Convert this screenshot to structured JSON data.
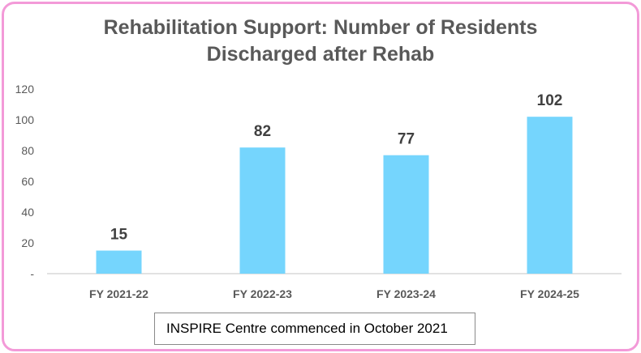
{
  "chart_data": {
    "type": "bar",
    "title": "Rehabilitation Support: Number of Residents Discharged after Rehab",
    "title_lines": [
      "Rehabilitation Support: Number of Residents",
      "Discharged after Rehab"
    ],
    "categories": [
      "FY 2021-22",
      "FY 2022-23",
      "FY 2023-24",
      "FY 2024-25"
    ],
    "values": [
      15,
      82,
      77,
      102
    ],
    "data_labels": [
      "15",
      "82",
      "77",
      "102"
    ],
    "ylim": [
      0,
      120
    ],
    "yticks": [
      0,
      20,
      40,
      60,
      80,
      100,
      120
    ],
    "ytick_labels": [
      "-",
      "20",
      "40",
      "60",
      "80",
      "100",
      "120"
    ],
    "xlabel": "",
    "ylabel": "",
    "grid": false,
    "bar_color": "#75d5fd",
    "axis_color": "#d9d9d9"
  },
  "annotation": "INSPIRE Centre commenced in October 2021",
  "frame_color": "#f39ad8"
}
